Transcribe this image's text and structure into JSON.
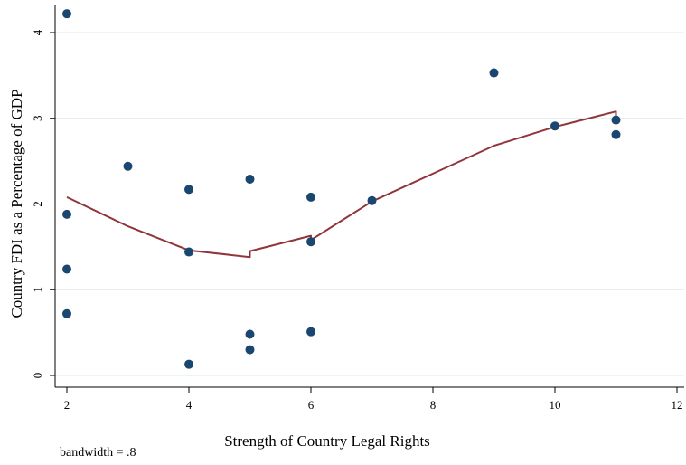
{
  "chart_data": {
    "type": "scatter",
    "xlabel": "Strength of Country Legal Rights",
    "ylabel": "Country FDI as a Percentage of GDP",
    "note": "bandwidth = .8",
    "xlim": [
      2,
      12
    ],
    "ylim": [
      0,
      4
    ],
    "x_ticks": [
      2,
      4,
      6,
      8,
      10,
      12
    ],
    "y_ticks": [
      0,
      1,
      2,
      3,
      4
    ],
    "grid": "horizontal",
    "colors": {
      "points": "#1a476f",
      "fit_line": "#90353b",
      "grid": "#dfe8ea"
    },
    "series": [
      {
        "type": "scatter",
        "points": [
          [
            2,
            4.22
          ],
          [
            2,
            1.88
          ],
          [
            2,
            1.24
          ],
          [
            2,
            0.72
          ],
          [
            3,
            2.44
          ],
          [
            4,
            2.17
          ],
          [
            4,
            1.44
          ],
          [
            4,
            0.13
          ],
          [
            5,
            2.29
          ],
          [
            5,
            0.48
          ],
          [
            5,
            0.3
          ],
          [
            6,
            2.08
          ],
          [
            6,
            1.56
          ],
          [
            6,
            0.51
          ],
          [
            7,
            2.04
          ],
          [
            9,
            3.53
          ],
          [
            10,
            2.91
          ],
          [
            11,
            2.98
          ],
          [
            11,
            2.81
          ]
        ]
      },
      {
        "type": "line",
        "points": [
          [
            2,
            2.08
          ],
          [
            3,
            1.74
          ],
          [
            4,
            1.46
          ],
          [
            5,
            1.38
          ],
          [
            5,
            1.45
          ],
          [
            6,
            1.63
          ],
          [
            6,
            1.58
          ],
          [
            7,
            2.03
          ],
          [
            9,
            2.68
          ],
          [
            10,
            2.9
          ],
          [
            11,
            3.08
          ],
          [
            11,
            2.98
          ]
        ]
      }
    ]
  }
}
